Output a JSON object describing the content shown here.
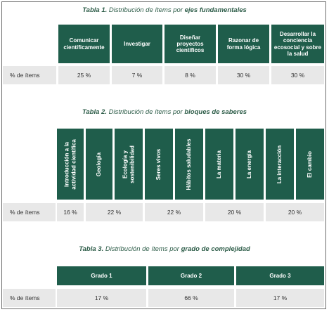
{
  "colors": {
    "header_bg": "#1f5d4b",
    "cell_bg": "#e8e8e8",
    "caption": "#2f5e4a"
  },
  "table1": {
    "caption_lead": "Tabla 1.",
    "caption_mid": " Distribución de ítems por ",
    "caption_tail": "ejes fundamentales",
    "row_label": "% de ítems",
    "headers": [
      "Comunicar científicamente",
      "Investigar",
      "Diseñar proyectos científicos",
      "Razonar de forma lógica",
      "Desarrollar la conciencia ecosocial y sobre la salud"
    ],
    "values": [
      "25 %",
      "7 %",
      "8 %",
      "30 %",
      "30 %"
    ]
  },
  "table2": {
    "caption_lead": "Tabla 2.",
    "caption_mid": " Distribución de ítems por ",
    "caption_tail": "bloques de saberes",
    "row_label": "% de ítems",
    "headers": [
      "Introducción a la actividad científica",
      "Geología",
      "Ecología y sostenibilidad",
      "Seres vivos",
      "Hábitos saludables",
      "La materia",
      "La energía",
      "La interacción",
      "El cambio"
    ],
    "values": [
      "16 %",
      "22 %",
      "22 %",
      "20 %",
      "20 %"
    ]
  },
  "table3": {
    "caption_lead": "Tabla 3.",
    "caption_mid": " Distribución de ítems por ",
    "caption_tail": "grado de complejidad",
    "row_label": "% de ítems",
    "headers": [
      "Grado 1",
      "Grado 2",
      "Grado 3"
    ],
    "values": [
      "17 %",
      "66 %",
      "17 %"
    ]
  }
}
